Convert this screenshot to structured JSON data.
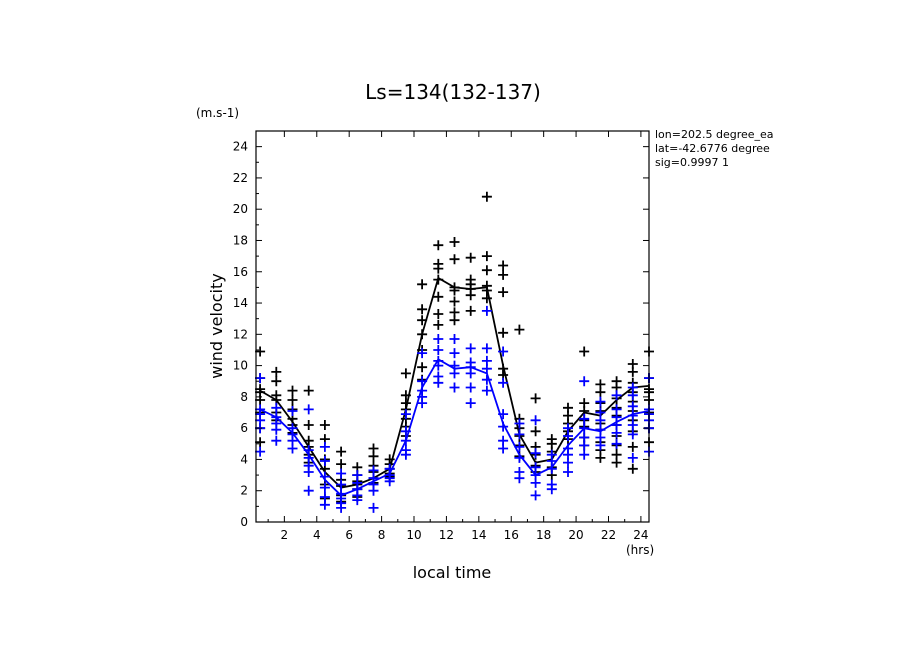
{
  "chart_data": {
    "type": "scatter",
    "title": "Ls=134(132-137)",
    "xlabel": "local time",
    "x_unit": "(hrs)",
    "ylabel": "wind velocity",
    "y_unit": "(m.s-1)",
    "info": [
      "lon=202.5 degree_ea",
      "lat=-42.6776 degree",
      "sig=0.9997 1"
    ],
    "xlim": [
      0.25,
      24.5
    ],
    "ylim": [
      0,
      25
    ],
    "xticks": [
      2,
      4,
      6,
      8,
      10,
      12,
      14,
      16,
      18,
      20,
      22,
      24
    ],
    "yticks": [
      0,
      2,
      4,
      6,
      8,
      10,
      12,
      14,
      16,
      18,
      20,
      22,
      24
    ],
    "x": [
      0.5,
      1.5,
      2.5,
      3.5,
      4.5,
      5.5,
      6.5,
      7.5,
      8.5,
      9.5,
      10.5,
      11.5,
      12.5,
      13.5,
      14.5,
      15.5,
      16.5,
      17.5,
      18.5,
      19.5,
      20.5,
      21.5,
      22.5,
      23.5,
      24.5
    ],
    "series": [
      {
        "color": "#000000",
        "mean": [
          8.4,
          7.8,
          6.4,
          4.8,
          3.2,
          2.2,
          2.4,
          2.8,
          3.4,
          7.2,
          12.0,
          15.6,
          15.0,
          14.9,
          15.0,
          10.0,
          5.6,
          3.8,
          4.0,
          5.8,
          7.0,
          6.8,
          7.8,
          8.6,
          8.7
        ],
        "points": [
          [
            10.9,
            9.2,
            8.5,
            8.3,
            7.8,
            7.0,
            6.0,
            5.1
          ],
          [
            9.6,
            9.0,
            8.1,
            7.8,
            7.0,
            6.5
          ],
          [
            8.4,
            7.8,
            7.2,
            6.6,
            6.2,
            5.7
          ],
          [
            8.4,
            6.2,
            5.2,
            4.8,
            4.3,
            3.8
          ],
          [
            6.2,
            5.3,
            4.0,
            3.4,
            2.4,
            1.5
          ],
          [
            4.5,
            3.7,
            2.7,
            2.3,
            1.7,
            1.3
          ],
          [
            3.5,
            3.0,
            2.6,
            2.4,
            2.1,
            1.6
          ],
          [
            4.7,
            4.2,
            3.6,
            3.2,
            2.8,
            2.5
          ],
          [
            4.0,
            3.7,
            3.4,
            3.1,
            2.9
          ],
          [
            9.5,
            8.1,
            7.6,
            7.2,
            6.6,
            6.1,
            5.5
          ],
          [
            15.2,
            13.6,
            12.9,
            12.0,
            11.0,
            9.9,
            9.1
          ],
          [
            17.7,
            16.5,
            16.2,
            15.5,
            14.4,
            13.3,
            12.6
          ],
          [
            17.9,
            16.8,
            15.0,
            14.8,
            14.1,
            13.4,
            12.9
          ],
          [
            16.9,
            15.5,
            15.2,
            14.9,
            14.5,
            13.5
          ],
          [
            20.8,
            17.0,
            16.1,
            15.1,
            14.8,
            14.3
          ],
          [
            16.4,
            15.8,
            14.7,
            12.1,
            9.8,
            9.4
          ],
          [
            12.3,
            6.6,
            6.0,
            5.5,
            4.9,
            4.2
          ],
          [
            7.9,
            5.8,
            4.8,
            4.3,
            3.6,
            3.2
          ],
          [
            5.3,
            5.0,
            4.5,
            3.5,
            3.0
          ],
          [
            7.3,
            6.8,
            6.3,
            5.8,
            5.3
          ],
          [
            10.9,
            7.6,
            7.1,
            6.5,
            6.1,
            5.4,
            4.9
          ],
          [
            8.8,
            8.3,
            7.6,
            7.1,
            6.3,
            5.9,
            5.1,
            4.6,
            4.1
          ],
          [
            9.0,
            8.6,
            7.9,
            7.3,
            6.8,
            6.2,
            5.5,
            4.9,
            4.3,
            3.8
          ],
          [
            10.1,
            9.6,
            8.9,
            8.3,
            7.7,
            7.1,
            6.5,
            5.8,
            4.8,
            3.4
          ],
          [
            10.9,
            9.2,
            8.5,
            8.3,
            7.8,
            7.0,
            6.0,
            5.1
          ]
        ]
      },
      {
        "color": "#0000ff",
        "mean": [
          7.2,
          6.7,
          5.7,
          4.3,
          2.7,
          1.7,
          2.1,
          2.6,
          3.1,
          5.2,
          8.6,
          10.4,
          9.8,
          9.9,
          9.5,
          6.3,
          4.3,
          3.0,
          3.5,
          4.9,
          6.0,
          5.8,
          6.4,
          6.9,
          7.1
        ],
        "points": [
          [
            9.2,
            7.2,
            6.9,
            6.5,
            6.0,
            4.5
          ],
          [
            7.3,
            6.7,
            6.3,
            5.9,
            5.2
          ],
          [
            7.1,
            6.0,
            5.6,
            5.2,
            4.7
          ],
          [
            7.2,
            4.6,
            4.1,
            3.6,
            3.2,
            2.0
          ],
          [
            4.8,
            3.9,
            2.9,
            2.2,
            1.6,
            1.1
          ],
          [
            3.1,
            2.4,
            1.8,
            1.5,
            1.2,
            0.9
          ],
          [
            3.0,
            2.5,
            2.1,
            1.7,
            1.4
          ],
          [
            3.3,
            2.8,
            2.4,
            2.0,
            0.9
          ],
          [
            3.4,
            3.0,
            2.8,
            2.6
          ],
          [
            6.9,
            5.8,
            5.2,
            4.6,
            4.3
          ],
          [
            10.8,
            9.0,
            8.4,
            8.0,
            7.6
          ],
          [
            11.7,
            11.0,
            10.3,
            10.0,
            9.3,
            8.9
          ],
          [
            11.7,
            10.8,
            10.0,
            9.5,
            8.6
          ],
          [
            11.1,
            10.2,
            9.9,
            9.5,
            8.6,
            7.6
          ],
          [
            13.5,
            11.1,
            10.3,
            9.8,
            9.1,
            8.4
          ],
          [
            10.9,
            8.9,
            6.9,
            6.1,
            5.2,
            4.7
          ],
          [
            6.3,
            5.6,
            4.8,
            4.1,
            3.2,
            2.8
          ],
          [
            6.5,
            4.4,
            3.5,
            3.0,
            2.5,
            1.7
          ],
          [
            4.3,
            3.9,
            3.4,
            2.4,
            2.1
          ],
          [
            6.0,
            5.5,
            4.7,
            4.3,
            3.8,
            3.2
          ],
          [
            9.0,
            6.6,
            6.0,
            5.4,
            4.9,
            4.3
          ],
          [
            7.7,
            7.0,
            6.5,
            5.9,
            5.4,
            4.9
          ],
          [
            8.1,
            7.2,
            6.7,
            6.2,
            5.7,
            5.0
          ],
          [
            8.6,
            8.1,
            7.4,
            6.8,
            6.2,
            5.6,
            4.1
          ],
          [
            9.2,
            7.2,
            6.9,
            6.5,
            6.0,
            4.5
          ]
        ]
      }
    ]
  }
}
